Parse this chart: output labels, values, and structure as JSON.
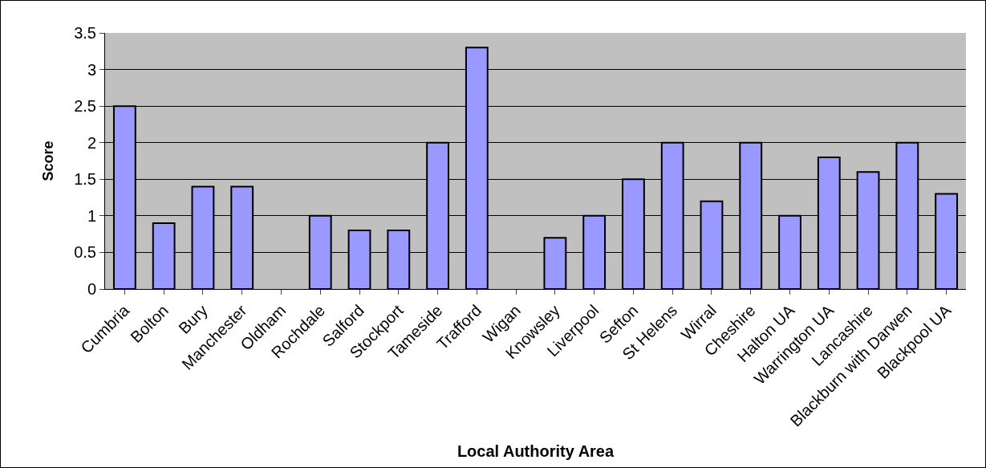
{
  "chart_data": {
    "type": "bar",
    "xlabel": "Local Authority Area",
    "ylabel": "Score",
    "categories": [
      "Cumbria",
      "Bolton",
      "Bury",
      "Manchester",
      "Oldham",
      "Rochdale",
      "Salford",
      "Stockport",
      "Tameside",
      "Trafford",
      "Wigan",
      "Knowsley",
      "Liverpool",
      "Sefton",
      "St Helens",
      "Wirral",
      "Cheshire",
      "Halton UA",
      "Warrington UA",
      "Lancashire",
      "Blackburn with Darwen",
      "Blackpool UA"
    ],
    "values": [
      2.5,
      0.9,
      1.4,
      1.4,
      null,
      1.0,
      0.8,
      0.8,
      2.0,
      3.3,
      null,
      0.7,
      1.0,
      1.5,
      2.0,
      1.2,
      2.0,
      1.0,
      1.8,
      1.6,
      2.0,
      1.3
    ],
    "color": "#9999ff",
    "ylim": [
      0,
      3.5
    ],
    "yticks": [
      0,
      0.5,
      1,
      1.5,
      2,
      2.5,
      3,
      3.5
    ],
    "grid": "y",
    "legend": false
  }
}
